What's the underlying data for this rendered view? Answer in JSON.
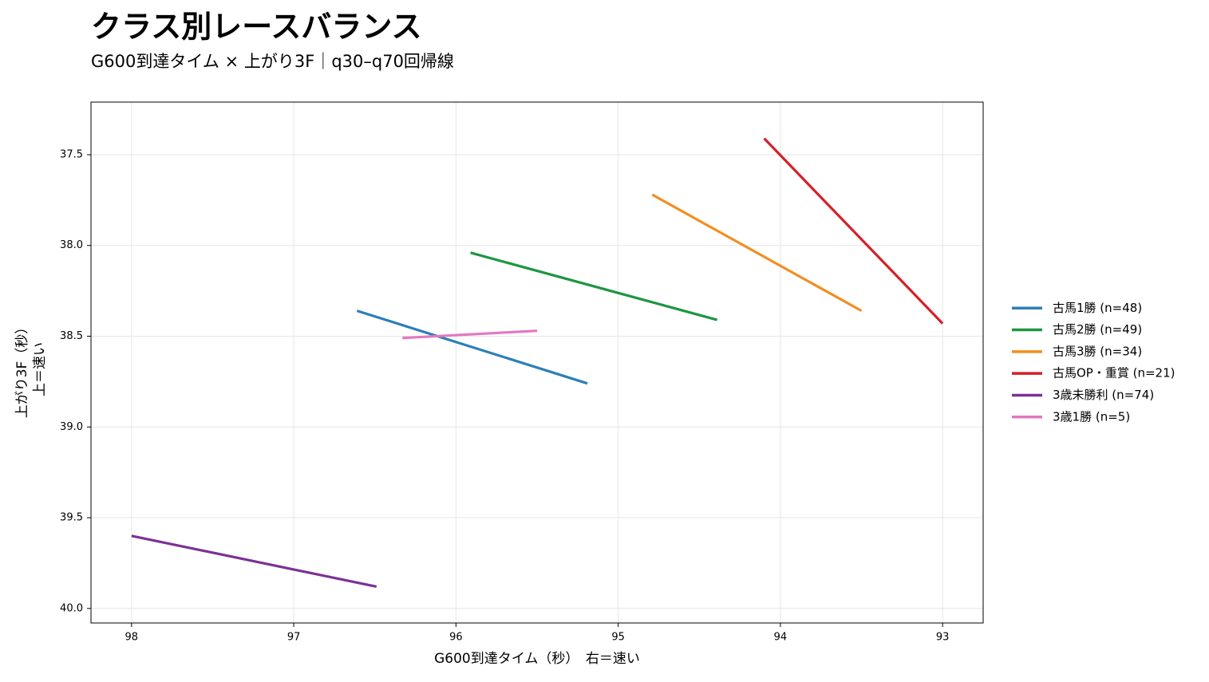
{
  "chart_data": {
    "type": "line",
    "title": "クラス別レースバランス",
    "subtitle": "G600到達タイム × 上がり3F｜q30–q70回帰線",
    "xlabel": "G600到達タイム（秒）　右＝速い",
    "ylabel": [
      "上がり3F（秒）",
      "上＝速い"
    ],
    "xlim": [
      98.25,
      92.75
    ],
    "xticks": [
      98,
      97,
      96,
      95,
      94,
      93
    ],
    "ylim": [
      40.08,
      37.21
    ],
    "yticks": [
      37.5,
      {
        "value": 38,
        "label": "38.0"
      },
      38.5,
      {
        "value": 39,
        "label": "39.0"
      },
      39.5,
      {
        "value": 40,
        "label": "40.0"
      }
    ],
    "grid": true,
    "legend": "right",
    "series": [
      {
        "name": "古馬1勝 (n=48)",
        "color": "#2c7fb8",
        "x": [
          96.61,
          95.19
        ],
        "values": [
          38.36,
          38.76
        ]
      },
      {
        "name": "古馬2勝 (n=49)",
        "color": "#1e9641",
        "x": [
          95.91,
          94.39
        ],
        "values": [
          38.04,
          38.41
        ]
      },
      {
        "name": "古馬3勝 (n=34)",
        "color": "#f28e22",
        "x": [
          94.79,
          93.5
        ],
        "values": [
          37.72,
          38.36
        ]
      },
      {
        "name": "古馬OP・重賞 (n=21)",
        "color": "#d62028",
        "x": [
          94.1,
          93.0
        ],
        "values": [
          37.41,
          38.43
        ]
      },
      {
        "name": "3歳未勝利 (n=74)",
        "color": "#7b3294",
        "x": [
          98.0,
          96.49
        ],
        "values": [
          39.6,
          39.88
        ]
      },
      {
        "name": "3歳1勝 (n=5)",
        "color": "#e377c2",
        "x": [
          96.33,
          95.5
        ],
        "values": [
          38.51,
          38.47
        ]
      }
    ]
  }
}
